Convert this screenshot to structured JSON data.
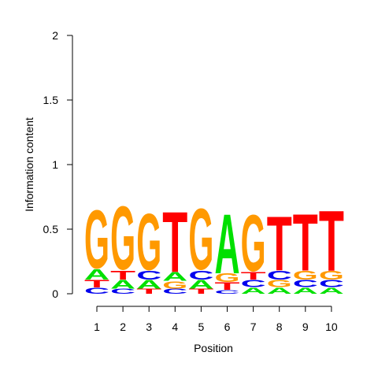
{
  "chart_data": {
    "type": "sequence-logo",
    "xlabel": "Position",
    "ylabel": "Information content",
    "ylim": [
      0,
      2
    ],
    "yticks": [
      0,
      0.5,
      1,
      1.5,
      2
    ],
    "ytick_labels": [
      "0",
      "0.5",
      "1",
      "1.5",
      "2"
    ],
    "positions": [
      {
        "label": "1",
        "stack": [
          {
            "letter": "C",
            "height": 0.05
          },
          {
            "letter": "T",
            "height": 0.06
          },
          {
            "letter": "A",
            "height": 0.08
          },
          {
            "letter": "G",
            "height": 0.48
          }
        ]
      },
      {
        "label": "2",
        "stack": [
          {
            "letter": "C",
            "height": 0.04
          },
          {
            "letter": "A",
            "height": 0.07
          },
          {
            "letter": "T",
            "height": 0.07
          },
          {
            "letter": "G",
            "height": 0.52
          }
        ]
      },
      {
        "label": "3",
        "stack": [
          {
            "letter": "T",
            "height": 0.04
          },
          {
            "letter": "A",
            "height": 0.07
          },
          {
            "letter": "C",
            "height": 0.07
          },
          {
            "letter": "G",
            "height": 0.46
          }
        ]
      },
      {
        "label": "4",
        "stack": [
          {
            "letter": "C",
            "height": 0.04
          },
          {
            "letter": "G",
            "height": 0.06
          },
          {
            "letter": "A",
            "height": 0.07
          },
          {
            "letter": "T",
            "height": 0.48
          }
        ]
      },
      {
        "label": "5",
        "stack": [
          {
            "letter": "T",
            "height": 0.04
          },
          {
            "letter": "A",
            "height": 0.07
          },
          {
            "letter": "C",
            "height": 0.07
          },
          {
            "letter": "G",
            "height": 0.5
          }
        ]
      },
      {
        "label": "6",
        "stack": [
          {
            "letter": "C",
            "height": 0.03
          },
          {
            "letter": "T",
            "height": 0.06
          },
          {
            "letter": "G",
            "height": 0.07
          },
          {
            "letter": "A",
            "height": 0.47
          }
        ]
      },
      {
        "label": "7",
        "stack": [
          {
            "letter": "A",
            "height": 0.05
          },
          {
            "letter": "C",
            "height": 0.06
          },
          {
            "letter": "T",
            "height": 0.06
          },
          {
            "letter": "G",
            "height": 0.46
          }
        ]
      },
      {
        "label": "8",
        "stack": [
          {
            "letter": "A",
            "height": 0.05
          },
          {
            "letter": "G",
            "height": 0.06
          },
          {
            "letter": "C",
            "height": 0.07
          },
          {
            "letter": "T",
            "height": 0.43
          }
        ]
      },
      {
        "label": "9",
        "stack": [
          {
            "letter": "A",
            "height": 0.05
          },
          {
            "letter": "C",
            "height": 0.06
          },
          {
            "letter": "G",
            "height": 0.07
          },
          {
            "letter": "T",
            "height": 0.45
          }
        ]
      },
      {
        "label": "10",
        "stack": [
          {
            "letter": "A",
            "height": 0.05
          },
          {
            "letter": "C",
            "height": 0.06
          },
          {
            "letter": "G",
            "height": 0.07
          },
          {
            "letter": "T",
            "height": 0.48
          }
        ]
      }
    ],
    "colors": {
      "A": "#00e000",
      "C": "#0000ee",
      "G": "#ff9900",
      "T": "#ff0000"
    },
    "grid": false,
    "legend": "none"
  }
}
